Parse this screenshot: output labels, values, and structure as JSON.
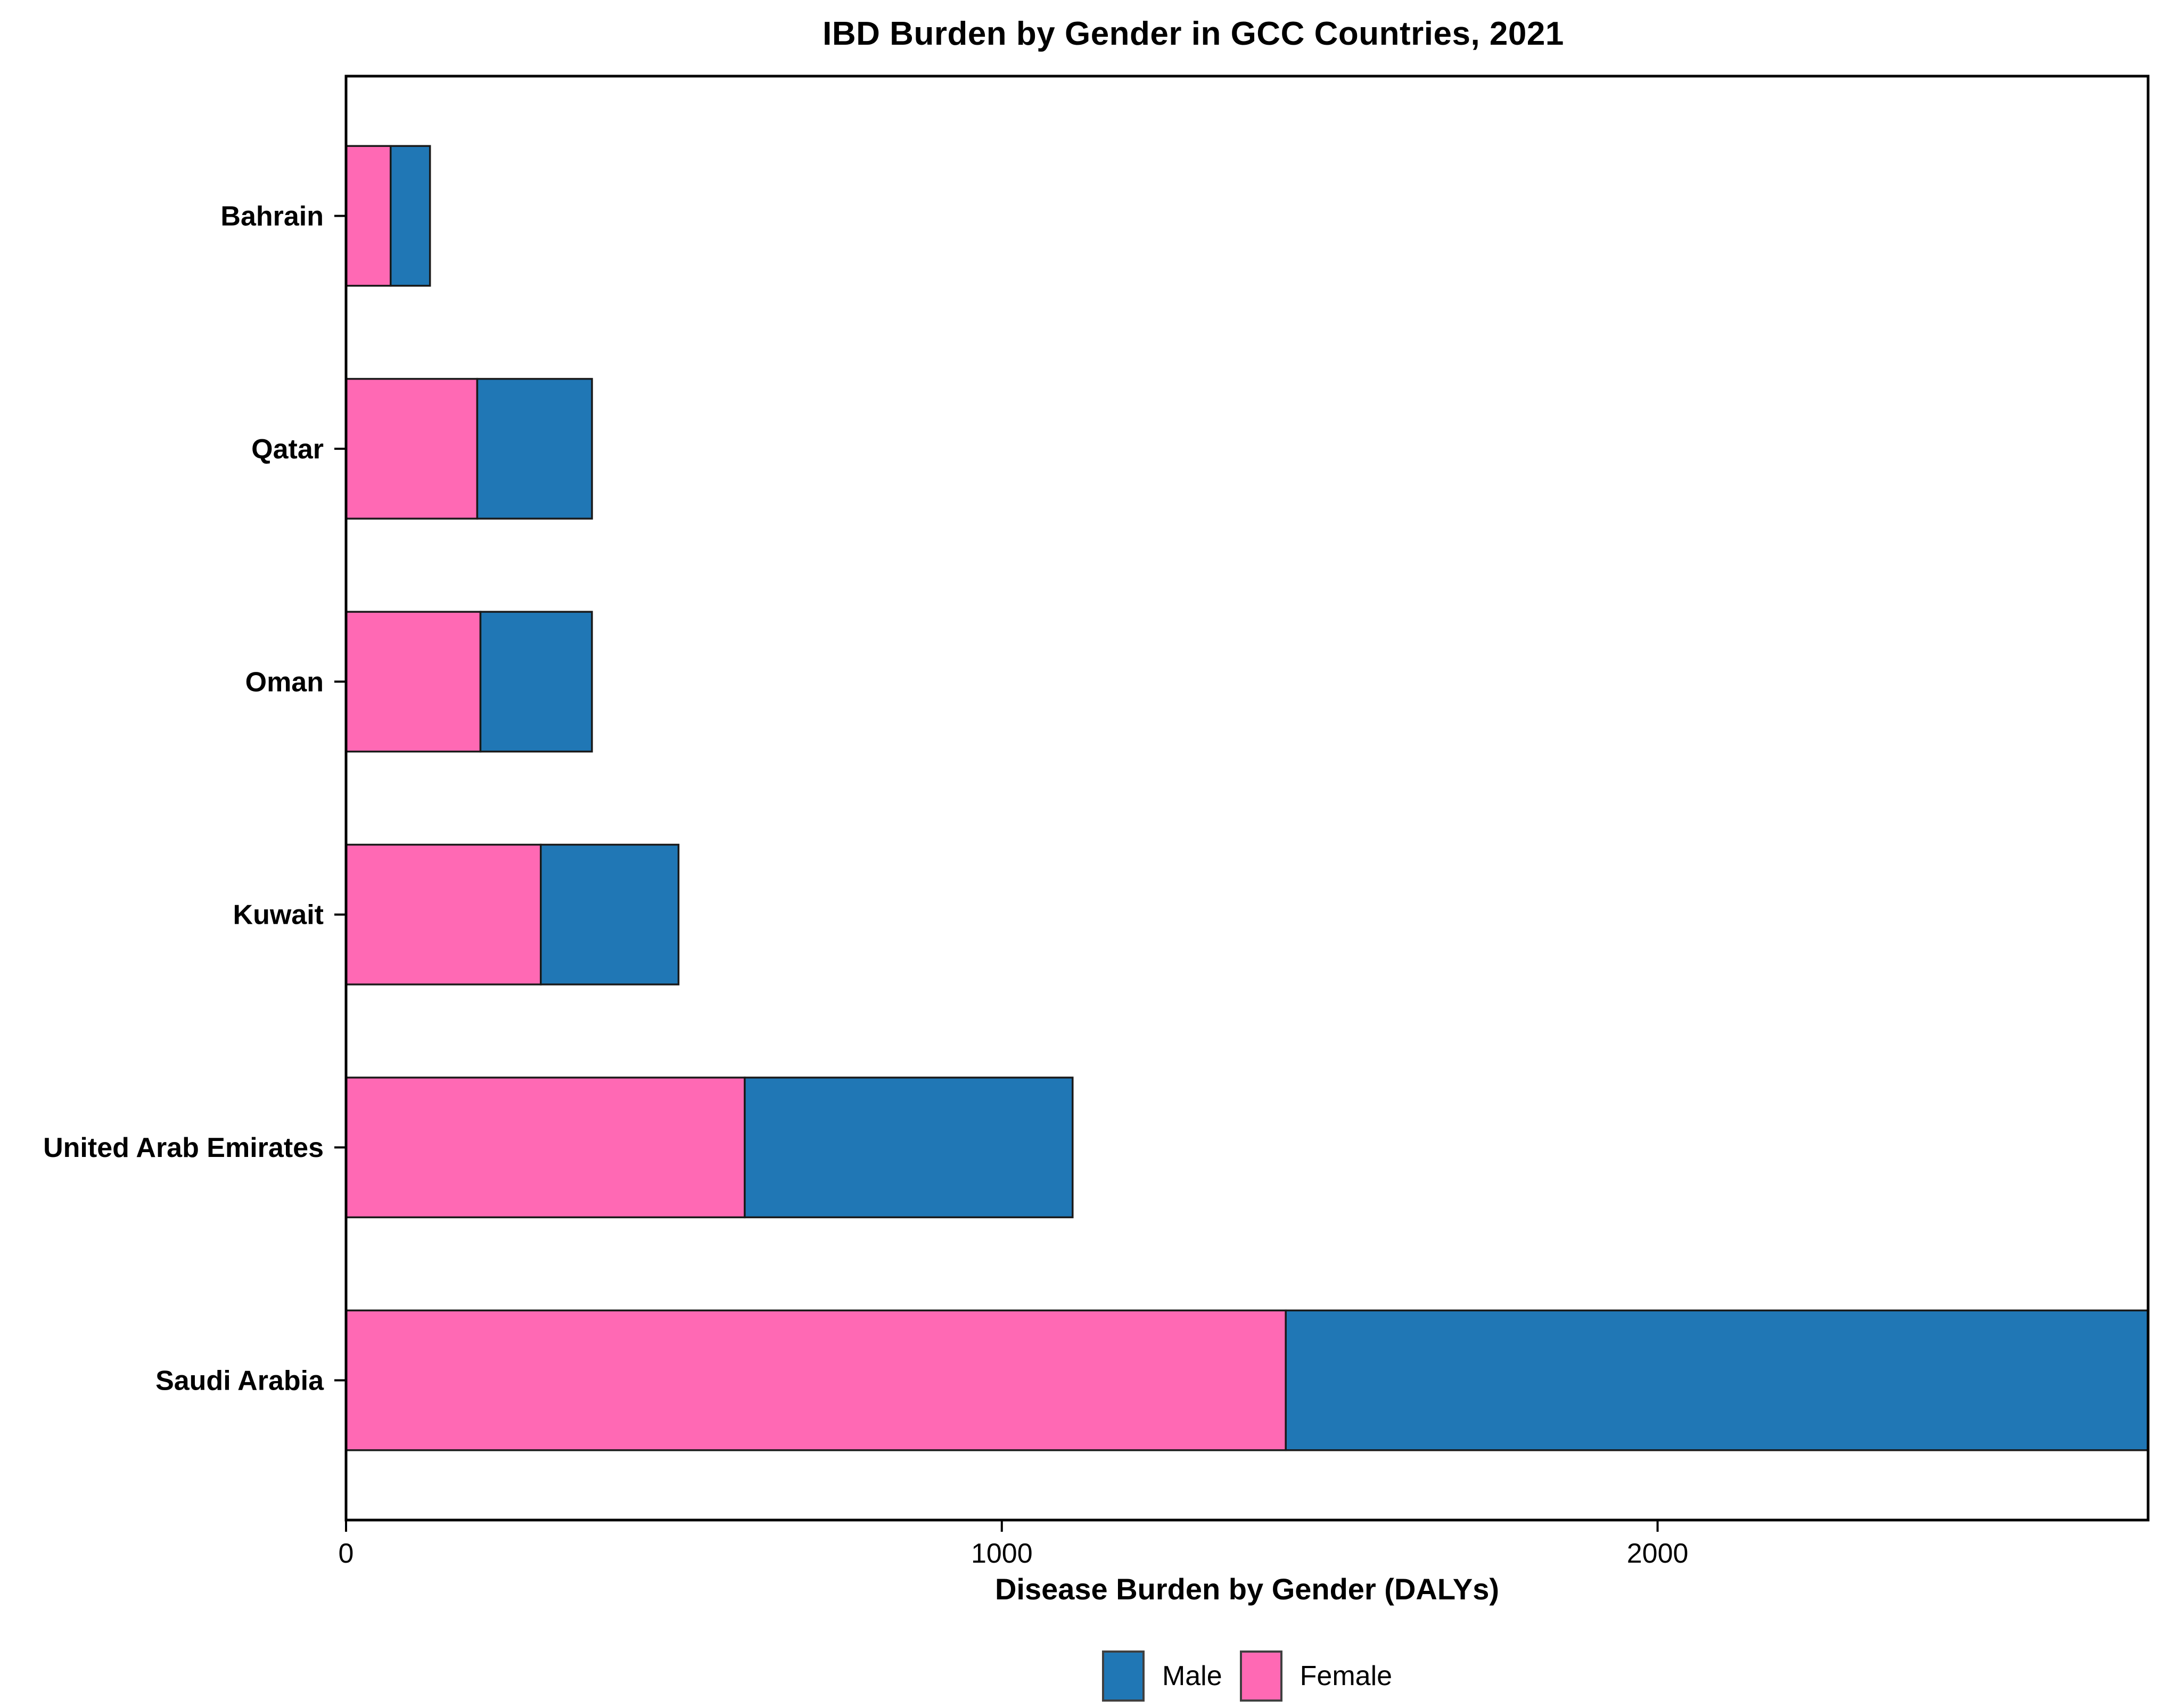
{
  "chart_data": {
    "type": "bar",
    "orientation": "horizontal",
    "stacked": true,
    "title": "IBD Burden by Gender in GCC Countries, 2021",
    "xlabel": "Disease Burden by Gender (DALYs)",
    "ylabel": "",
    "categories": [
      "Bahrain",
      "Qatar",
      "Oman",
      "Kuwait",
      "United Arab Emirates",
      "Saudi Arabia"
    ],
    "series": [
      {
        "name": "Female",
        "color": "#FF69B4",
        "values": [
          68,
          200,
          205,
          297,
          608,
          1433
        ]
      },
      {
        "name": "Male",
        "color": "#2077B5",
        "values": [
          60,
          175,
          170,
          210,
          500,
          1315
        ]
      }
    ],
    "totals": [
      128,
      375,
      375,
      507,
      1108,
      2748
    ],
    "x_ticks": [
      0,
      1000,
      2000
    ],
    "xlim": [
      0,
      2748
    ],
    "grid": false,
    "legend": {
      "position": "bottom",
      "entries": [
        {
          "label": "Male",
          "color": "#2077B5"
        },
        {
          "label": "Female",
          "color": "#FF69B4"
        }
      ]
    },
    "bar_outline_color": "#1A1A1A",
    "axis_color": "#000000"
  }
}
